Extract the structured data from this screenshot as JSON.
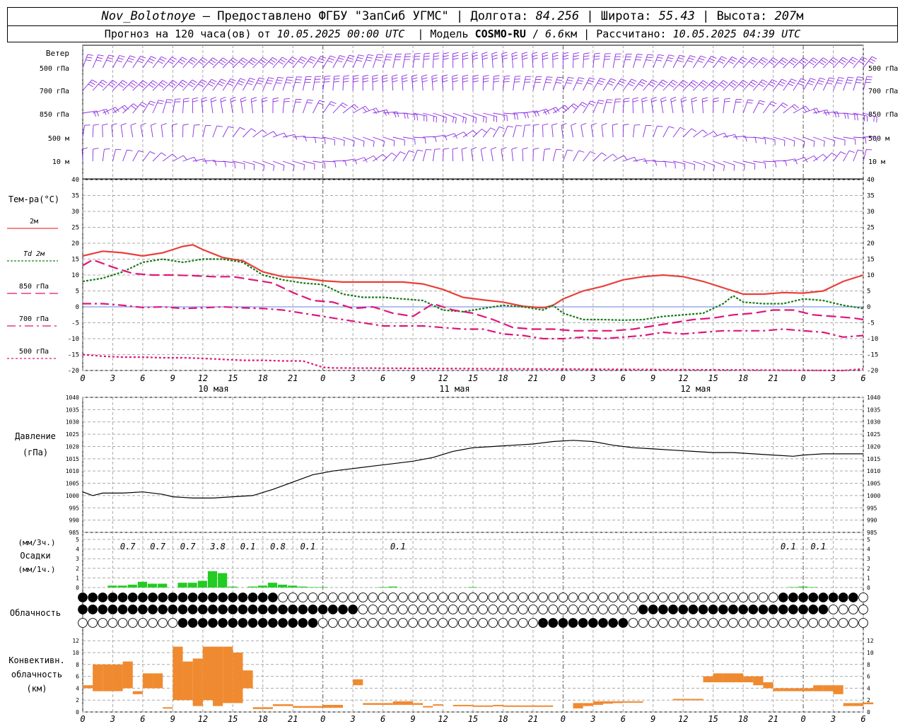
{
  "header": {
    "station": "Nov_Bolotnoye",
    "provider": "Предоставлено ФГБУ \"ЗапСиб УГМС\"",
    "lon_label": "Долгота:",
    "lon_value": "84.256",
    "lat_label": "Широта:",
    "lat_value": "55.43",
    "alt_label": "Высота:",
    "alt_value": "207",
    "alt_unit": "м",
    "forecast_prefix": "Прогноз на 120 часа(ов) от",
    "forecast_time": "10.05.2025 00:00 UTC",
    "model_label": "Модель",
    "model_name": "COSMO-RU",
    "model_res": "6.6",
    "model_res_unit": "км",
    "calc_label": "Рассчитано:",
    "calc_time": "10.05.2025 04:39 UTC"
  },
  "panels": {
    "wind": {
      "title": "Ветер",
      "levels": [
        "500 гПа",
        "700 гПа",
        "850 гПа",
        "500 м",
        "10 м"
      ],
      "color": "#8a2be2"
    },
    "temperature": {
      "title": "Тем-ра(°С)",
      "legend": [
        {
          "label": "2м",
          "color": "#e8403a",
          "dash": "solid"
        },
        {
          "label": "Td 2м",
          "color": "#1a7a1a",
          "dash": "dot"
        },
        {
          "label": "850 гПа",
          "color": "#e0157a",
          "dash": "dash"
        },
        {
          "label": "700 гПа",
          "color": "#e0157a",
          "dash": "dashdot"
        },
        {
          "label": "500 гПа",
          "color": "#e0157a",
          "dash": "dotted"
        }
      ],
      "ticks": [
        "40",
        "35",
        "30",
        "25",
        "20",
        "15",
        "10",
        "5",
        "0",
        "-5",
        "-10",
        "-15",
        "-20"
      ]
    },
    "pressure": {
      "title": "Давление",
      "unit": "(гПа)",
      "ticks": [
        "1040",
        "1035",
        "1030",
        "1025",
        "1020",
        "1015",
        "1010",
        "1005",
        "1000",
        "995",
        "990",
        "985"
      ]
    },
    "precip": {
      "unit_top": "(мм/3ч.)",
      "title": "Осадки",
      "unit_bottom": "(мм/1ч.)",
      "ticks": [
        "5",
        "4",
        "3",
        "2",
        "1",
        "0"
      ],
      "sums": [
        {
          "hour": 4.5,
          "label": "0.7"
        },
        {
          "hour": 7.5,
          "label": "0.7"
        },
        {
          "hour": 10.5,
          "label": "0.7"
        },
        {
          "hour": 13.5,
          "label": "3.8"
        },
        {
          "hour": 16.5,
          "label": "0.1"
        },
        {
          "hour": 19.5,
          "label": "0.8"
        },
        {
          "hour": 22.5,
          "label": "0.1"
        },
        {
          "hour": 31.5,
          "label": "0.1"
        },
        {
          "hour": 70.5,
          "label": "0.1"
        },
        {
          "hour": 73.5,
          "label": "0.1"
        }
      ],
      "color": "#22cc22"
    },
    "cloud": {
      "title": "Облачность"
    },
    "conv": {
      "title_1": "Конвективн.",
      "title_2": "облачность",
      "unit": "(км)",
      "ticks": [
        "12",
        "10",
        "8",
        "6",
        "4",
        "2",
        "0"
      ],
      "color": "#f08a30"
    }
  },
  "time_axis": {
    "hour_labels": [
      "0",
      "3",
      "6",
      "9",
      "12",
      "15",
      "18",
      "21",
      "0",
      "3",
      "6",
      "9",
      "12",
      "15",
      "18",
      "21",
      "0",
      "3",
      "6",
      "9",
      "12",
      "15",
      "18",
      "21",
      "0",
      "3",
      "6"
    ],
    "days": [
      "10 мая",
      "11 мая",
      "12 мая"
    ]
  },
  "chart_data": [
    {
      "type": "line",
      "title": "Тем-ра(°С)",
      "x_unit": "hours from 10.05.2025 00:00 UTC",
      "ylim": [
        -20,
        40
      ],
      "series": [
        {
          "name": "2м",
          "x": [
            0,
            2,
            4,
            6,
            8,
            10,
            11,
            12,
            14,
            16,
            18,
            20,
            22,
            24,
            26,
            28,
            30,
            32,
            34,
            36,
            38,
            40,
            42,
            44,
            46,
            47,
            48,
            50,
            52,
            54,
            56,
            58,
            60,
            62,
            64,
            66,
            68,
            70,
            72,
            74,
            76,
            78
          ],
          "values": [
            16,
            17.5,
            17,
            16,
            17,
            19,
            19.5,
            18,
            15.5,
            14.5,
            11,
            9.5,
            9,
            8.2,
            7.8,
            7.8,
            7.8,
            7.8,
            7.2,
            5.5,
            3,
            2.2,
            1.5,
            0.2,
            -0.3,
            0.5,
            2.5,
            5,
            6.5,
            8.5,
            9.5,
            10,
            9.5,
            8,
            6,
            4,
            4,
            4.5,
            4.3,
            5,
            8,
            10
          ]
        },
        {
          "name": "Td 2м",
          "x": [
            0,
            2,
            4,
            6,
            8,
            10,
            12,
            14,
            16,
            18,
            20,
            22,
            24,
            26,
            28,
            30,
            32,
            34,
            36,
            38,
            40,
            42,
            44,
            46,
            47,
            48,
            50,
            52,
            54,
            56,
            58,
            60,
            62,
            64,
            65,
            66,
            68,
            70,
            72,
            74,
            76,
            78
          ],
          "values": [
            8,
            9,
            11,
            14,
            15,
            14,
            15,
            15,
            14,
            10,
            8.5,
            7.5,
            7,
            4,
            3,
            3,
            2.5,
            2,
            -1,
            -1.5,
            -0.5,
            0.5,
            0,
            -1,
            0.5,
            -2,
            -4,
            -4,
            -4.2,
            -4,
            -3,
            -2.5,
            -2,
            1,
            3.5,
            1.5,
            1,
            1,
            2.5,
            2,
            0.5,
            -0.5
          ]
        },
        {
          "name": "850 гПа",
          "x": [
            0,
            1,
            3,
            5,
            7,
            9,
            11,
            13,
            15,
            17,
            19,
            21,
            23,
            25,
            27,
            29,
            31,
            33,
            35,
            37,
            39,
            41,
            43,
            45,
            47,
            49,
            51,
            53,
            55,
            57,
            59,
            61,
            63,
            65,
            67,
            69,
            71,
            73,
            75,
            77,
            78
          ],
          "values": [
            13,
            14.8,
            12.5,
            10.5,
            10,
            10,
            9.8,
            9.5,
            9.5,
            8.5,
            7.5,
            4.5,
            2,
            1.5,
            -0.5,
            0,
            -2,
            -3,
            1,
            -1,
            -2,
            -4,
            -6.5,
            -7,
            -7,
            -7.5,
            -7.5,
            -7.5,
            -7,
            -6,
            -5,
            -4,
            -3.5,
            -2.5,
            -2,
            -1,
            -1,
            -2.5,
            -3,
            -3.5,
            -4
          ]
        },
        {
          "name": "700 гПа",
          "x": [
            0,
            2,
            4,
            6,
            8,
            10,
            12,
            14,
            16,
            18,
            20,
            22,
            24,
            26,
            28,
            30,
            32,
            34,
            36,
            38,
            40,
            42,
            44,
            46,
            48,
            50,
            52,
            54,
            56,
            58,
            60,
            62,
            64,
            66,
            68,
            70,
            72,
            74,
            76,
            78
          ],
          "values": [
            1,
            1,
            0.5,
            -0.2,
            0,
            -0.5,
            -0.3,
            0,
            -0.3,
            -0.5,
            -1,
            -2,
            -3,
            -4,
            -5,
            -6,
            -6,
            -6,
            -6.5,
            -7,
            -7,
            -8.5,
            -9,
            -10,
            -10,
            -9.5,
            -10,
            -9.5,
            -9,
            -8,
            -8.5,
            -8,
            -7.5,
            -7.5,
            -7.5,
            -7,
            -7.5,
            -8,
            -9.5,
            -9
          ]
        },
        {
          "name": "500 гПа",
          "x": [
            0,
            2,
            4,
            6,
            8,
            10,
            12,
            14,
            16,
            18,
            20,
            22,
            24,
            25,
            76,
            78
          ],
          "values": [
            -15,
            -15.5,
            -15.8,
            -15.8,
            -16,
            -16,
            -16.2,
            -16.5,
            -16.8,
            -16.8,
            -17,
            -17,
            -19,
            -19.2,
            -20,
            -19.5
          ]
        }
      ]
    },
    {
      "type": "line",
      "title": "Давление",
      "x_unit": "hours from 10.05.2025 00:00 UTC",
      "ylim": [
        985,
        1040
      ],
      "series": [
        {
          "name": "Давление",
          "x": [
            0,
            1,
            2,
            4,
            6,
            8,
            9,
            11,
            13,
            15,
            17,
            19,
            21,
            23,
            25,
            27,
            29,
            31,
            33,
            35,
            37,
            39,
            41,
            43,
            45,
            47,
            49,
            51,
            53,
            55,
            57,
            59,
            61,
            63,
            65,
            67,
            69,
            71,
            72,
            74,
            76,
            78
          ],
          "values": [
            1001.5,
            1000,
            1001,
            1001,
            1001.5,
            1000.5,
            999.5,
            999,
            999,
            999.5,
            1000,
            1002.5,
            1005.5,
            1008.5,
            1010,
            1011,
            1012,
            1013,
            1014,
            1015.5,
            1018,
            1019.5,
            1020,
            1020.5,
            1021,
            1022,
            1022.5,
            1022,
            1020.5,
            1019.5,
            1019,
            1018.5,
            1018,
            1017.5,
            1017.5,
            1017,
            1016.5,
            1016,
            1016.5,
            1017,
            1017,
            1017
          ]
        }
      ]
    },
    {
      "type": "bar",
      "title": "Осадки",
      "x_unit": "hours from 10.05.2025 00:00 UTC",
      "ylabel": "(мм/1ч.)",
      "ylim": [
        0,
        5
      ],
      "x": [
        3,
        4,
        5,
        6,
        7,
        8,
        10,
        11,
        12,
        13,
        14,
        15,
        17,
        18,
        19,
        20,
        21,
        22,
        23,
        24,
        30,
        31,
        39,
        71,
        72,
        73
      ],
      "values": [
        0.2,
        0.2,
        0.3,
        0.6,
        0.4,
        0.4,
        0.5,
        0.5,
        0.7,
        1.7,
        1.5,
        0.1,
        0.1,
        0.2,
        0.5,
        0.3,
        0.2,
        0.1,
        0.05,
        0.05,
        0.05,
        0.1,
        0.05,
        0.05,
        0.1,
        0.05
      ]
    },
    {
      "type": "bar",
      "title": "Конвективн. облачность",
      "ylabel": "(км)",
      "x_unit": "hours from 10.05.2025 00:00 UTC",
      "ylim": [
        0,
        13
      ],
      "x": [
        0,
        1,
        2,
        3,
        4,
        5,
        6,
        7,
        8,
        9,
        10,
        11,
        12,
        13,
        14,
        15,
        16,
        17,
        18,
        19,
        20,
        21,
        22,
        23,
        24,
        25,
        27,
        28,
        29,
        30,
        31,
        32,
        33,
        34,
        35,
        37,
        38,
        39,
        40,
        41,
        42,
        43,
        44,
        45,
        46,
        49,
        50,
        51,
        52,
        53,
        54,
        55,
        59,
        60,
        61,
        62,
        63,
        64,
        65,
        66,
        67,
        68,
        69,
        70,
        71,
        72,
        73,
        74,
        75,
        76,
        77,
        78
      ],
      "low": [
        4,
        3.5,
        3.5,
        3.5,
        4,
        3,
        4,
        4,
        0.6,
        2,
        2,
        1,
        2,
        1,
        1.5,
        1.5,
        4,
        0.5,
        0.5,
        1,
        1,
        0.7,
        0.7,
        0.7,
        0.7,
        0.7,
        4.5,
        1.2,
        1.2,
        1.2,
        1.2,
        1.2,
        1.2,
        0.8,
        1.1,
        1,
        1,
        0.9,
        0.9,
        1,
        0.9,
        0.9,
        0.9,
        0.9,
        0.9,
        0.6,
        1,
        1.2,
        1.4,
        1.5,
        1.6,
        1.7,
        2,
        2,
        2,
        5,
        5,
        5,
        5,
        5,
        4.5,
        4,
        3.5,
        3.5,
        3.5,
        3.5,
        3.5,
        3.5,
        3,
        1,
        1,
        1.3
      ],
      "high": [
        4.5,
        8,
        8,
        8,
        8.5,
        3.5,
        6.5,
        6.5,
        0.8,
        11,
        8.5,
        9,
        11,
        11,
        11,
        10,
        7,
        0.8,
        0.8,
        1.3,
        1.3,
        1,
        1,
        1,
        1.2,
        1.2,
        5.5,
        1.5,
        1.5,
        1.5,
        1.8,
        1.8,
        1.5,
        1,
        1.3,
        1.2,
        1.2,
        1.1,
        1.1,
        1.2,
        1.1,
        1.1,
        1.1,
        1.1,
        1.1,
        1.5,
        1.5,
        1.8,
        1.8,
        1.8,
        1.8,
        1.8,
        2.2,
        2.2,
        2.2,
        6,
        6.5,
        6.5,
        6.5,
        6,
        6,
        5,
        4,
        4,
        4,
        4,
        4.5,
        4.5,
        4.5,
        1.5,
        1.5,
        1.6
      ]
    }
  ]
}
